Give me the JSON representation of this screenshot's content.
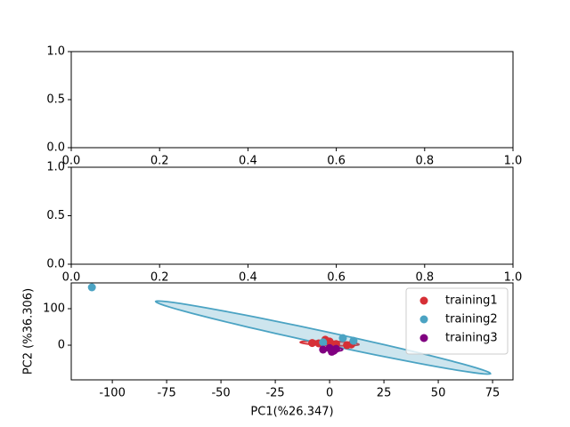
{
  "chart_data": [
    {
      "type": "scatter",
      "xlim": [
        0,
        1
      ],
      "xticks": [
        {
          "value": 0,
          "label": "0.0"
        },
        0.2,
        0.4,
        0.6,
        0.8,
        {
          "value": 1,
          "label": "1.0"
        }
      ],
      "ylim": [
        0,
        1
      ],
      "yticks": [
        {
          "value": 0,
          "label": "0.0"
        },
        0.5,
        {
          "value": 1,
          "label": "1.0"
        }
      ]
    },
    {
      "type": "scatter",
      "xlim": [
        0,
        1
      ],
      "xticks": [
        {
          "value": 0,
          "label": "0.0"
        },
        0.2,
        0.4,
        0.6,
        0.8,
        {
          "value": 1,
          "label": "1.0"
        }
      ],
      "ylim": [
        0,
        1
      ],
      "yticks": [
        {
          "value": 0,
          "label": "0.0"
        },
        0.5,
        {
          "value": 1,
          "label": "1.0"
        }
      ]
    },
    {
      "type": "scatter",
      "x_label": "PC1(%26.347)",
      "y_label": "PC2 (%36.306)",
      "xlim": [
        -118.9,
        84.4
      ],
      "xticks": [
        -100,
        -75,
        -50,
        -25,
        0,
        25,
        50,
        75
      ],
      "ylim": [
        -95,
        170.7
      ],
      "yticks": [
        0,
        100
      ],
      "legend": "upper right",
      "series": [
        {
          "name": "training1",
          "color": "#d62f36",
          "x": [
            -5,
            0,
            3,
            8,
            -2,
            10,
            -8
          ],
          "values": [
            5,
            10,
            3,
            0,
            15,
            2,
            6
          ],
          "ellipse": {
            "center": [
              0,
              5
            ],
            "u": [
              13.5,
              -3
            ],
            "v": [
              0,
              6
            ]
          }
        },
        {
          "name": "training2",
          "color": "#4ba3c3",
          "x": [
            -109.4,
            6.1,
            11,
            -3
          ],
          "values": [
            158.5,
            19.5,
            12,
            8
          ],
          "ellipse": {
            "center": [
              -3,
              21
            ],
            "u": [
              77,
              -99
            ],
            "v": [
              2,
              15
            ]
          }
        },
        {
          "name": "training3",
          "color": "#800080",
          "x": [
            -3,
            2,
            3,
            1,
            0
          ],
          "values": [
            -12,
            -15,
            -10,
            -18,
            -8
          ],
          "ellipse": {
            "center": [
              2,
              -12
            ],
            "u": [
              4,
              0
            ],
            "v": [
              0,
              5
            ]
          }
        }
      ]
    }
  ]
}
